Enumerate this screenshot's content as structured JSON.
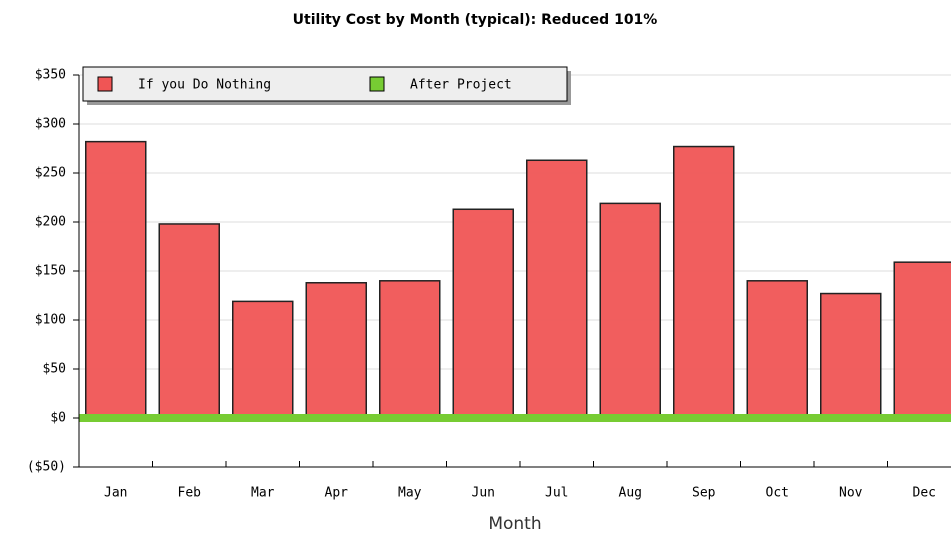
{
  "chart_data": {
    "type": "bar",
    "title": "Utility Cost by Month (typical): Reduced 101%",
    "x_label": "Month",
    "categories": [
      "Jan",
      "Feb",
      "Mar",
      "Apr",
      "May",
      "Jun",
      "Jul",
      "Aug",
      "Sep",
      "Oct",
      "Nov",
      "Dec"
    ],
    "series": [
      {
        "name": "If you Do Nothing",
        "color": "#f05555",
        "values": [
          282,
          198,
          119,
          138,
          140,
          213,
          263,
          219,
          277,
          140,
          127,
          159
        ]
      },
      {
        "name": "After Project",
        "color": "#77cc33",
        "values": [
          -3,
          -3,
          -3,
          -3,
          -3,
          -3,
          -3,
          -3,
          -3,
          -3,
          -3,
          -3
        ]
      }
    ],
    "ylim": [
      -50,
      350
    ],
    "yticks": [
      {
        "value": -50,
        "label": "($50)"
      },
      {
        "value": 0,
        "label": "$0"
      },
      {
        "value": 50,
        "label": "$50"
      },
      {
        "value": 100,
        "label": "$100"
      },
      {
        "value": 150,
        "label": "$150"
      },
      {
        "value": 200,
        "label": "$200"
      },
      {
        "value": 250,
        "label": "$250"
      },
      {
        "value": 300,
        "label": "$300"
      },
      {
        "value": 350,
        "label": "$350"
      }
    ],
    "grid": true,
    "legend": "top-left"
  }
}
